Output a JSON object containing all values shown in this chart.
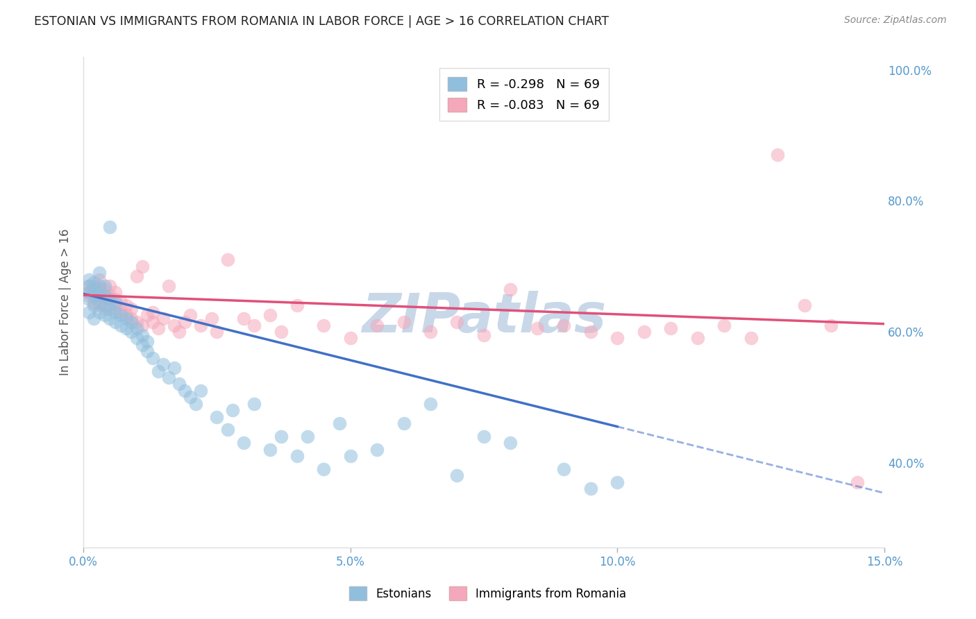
{
  "title": "ESTONIAN VS IMMIGRANTS FROM ROMANIA IN LABOR FORCE | AGE > 16 CORRELATION CHART",
  "source": "Source: ZipAtlas.com",
  "ylabel_label": "In Labor Force | Age > 16",
  "x_min": 0.0,
  "x_max": 0.15,
  "y_min": 0.27,
  "y_max": 1.02,
  "x_ticks": [
    0.0,
    0.05,
    0.1,
    0.15
  ],
  "x_tick_labels": [
    "0.0%",
    "5.0%",
    "10.0%",
    "15.0%"
  ],
  "y_ticks": [
    0.4,
    0.6,
    0.8,
    1.0
  ],
  "y_tick_labels": [
    "40.0%",
    "60.0%",
    "80.0%",
    "100.0%"
  ],
  "blue_R": -0.298,
  "blue_N": 69,
  "pink_R": -0.083,
  "pink_N": 69,
  "blue_color": "#90bedd",
  "pink_color": "#f5a8bb",
  "blue_line_color": "#4070c8",
  "pink_line_color": "#e0507a",
  "grid_color": "#cccccc",
  "background_color": "#ffffff",
  "title_color": "#222222",
  "axis_label_color": "#555555",
  "tick_color": "#5599cc",
  "watermark_text": "ZIPatlas",
  "watermark_color": "#c8d8e8",
  "legend_label_blue": "Estonians",
  "legend_label_pink": "Immigrants from Romania",
  "blue_scatter_x": [
    0.001,
    0.001,
    0.001,
    0.001,
    0.001,
    0.002,
    0.002,
    0.002,
    0.002,
    0.002,
    0.003,
    0.003,
    0.003,
    0.003,
    0.003,
    0.004,
    0.004,
    0.004,
    0.004,
    0.005,
    0.005,
    0.005,
    0.005,
    0.006,
    0.006,
    0.006,
    0.007,
    0.007,
    0.008,
    0.008,
    0.009,
    0.009,
    0.01,
    0.01,
    0.011,
    0.011,
    0.012,
    0.012,
    0.013,
    0.014,
    0.015,
    0.016,
    0.017,
    0.018,
    0.019,
    0.02,
    0.021,
    0.022,
    0.025,
    0.027,
    0.028,
    0.03,
    0.032,
    0.035,
    0.037,
    0.04,
    0.042,
    0.045,
    0.048,
    0.05,
    0.055,
    0.06,
    0.065,
    0.07,
    0.075,
    0.08,
    0.09,
    0.095,
    0.1
  ],
  "blue_scatter_y": [
    0.65,
    0.66,
    0.67,
    0.68,
    0.63,
    0.64,
    0.655,
    0.665,
    0.675,
    0.62,
    0.63,
    0.645,
    0.655,
    0.67,
    0.69,
    0.625,
    0.64,
    0.655,
    0.67,
    0.62,
    0.635,
    0.65,
    0.76,
    0.615,
    0.63,
    0.645,
    0.61,
    0.625,
    0.605,
    0.62,
    0.6,
    0.615,
    0.59,
    0.605,
    0.58,
    0.595,
    0.57,
    0.585,
    0.56,
    0.54,
    0.55,
    0.53,
    0.545,
    0.52,
    0.51,
    0.5,
    0.49,
    0.51,
    0.47,
    0.45,
    0.48,
    0.43,
    0.49,
    0.42,
    0.44,
    0.41,
    0.44,
    0.39,
    0.46,
    0.41,
    0.42,
    0.46,
    0.49,
    0.38,
    0.44,
    0.43,
    0.39,
    0.36,
    0.37
  ],
  "pink_scatter_x": [
    0.001,
    0.001,
    0.001,
    0.002,
    0.002,
    0.002,
    0.003,
    0.003,
    0.003,
    0.003,
    0.004,
    0.004,
    0.004,
    0.005,
    0.005,
    0.005,
    0.006,
    0.006,
    0.006,
    0.007,
    0.007,
    0.008,
    0.008,
    0.009,
    0.009,
    0.01,
    0.01,
    0.011,
    0.011,
    0.012,
    0.013,
    0.013,
    0.014,
    0.015,
    0.016,
    0.017,
    0.018,
    0.019,
    0.02,
    0.022,
    0.024,
    0.025,
    0.027,
    0.03,
    0.032,
    0.035,
    0.037,
    0.04,
    0.045,
    0.05,
    0.055,
    0.06,
    0.065,
    0.07,
    0.075,
    0.08,
    0.085,
    0.09,
    0.095,
    0.1,
    0.105,
    0.11,
    0.115,
    0.12,
    0.125,
    0.13,
    0.135,
    0.14,
    0.145
  ],
  "pink_scatter_y": [
    0.655,
    0.67,
    0.66,
    0.645,
    0.66,
    0.67,
    0.64,
    0.655,
    0.665,
    0.68,
    0.635,
    0.65,
    0.665,
    0.64,
    0.655,
    0.67,
    0.635,
    0.65,
    0.66,
    0.63,
    0.645,
    0.625,
    0.64,
    0.62,
    0.635,
    0.615,
    0.685,
    0.7,
    0.61,
    0.625,
    0.615,
    0.63,
    0.605,
    0.62,
    0.67,
    0.61,
    0.6,
    0.615,
    0.625,
    0.61,
    0.62,
    0.6,
    0.71,
    0.62,
    0.61,
    0.625,
    0.6,
    0.64,
    0.61,
    0.59,
    0.61,
    0.615,
    0.6,
    0.615,
    0.595,
    0.665,
    0.605,
    0.61,
    0.6,
    0.59,
    0.6,
    0.605,
    0.59,
    0.61,
    0.59,
    0.87,
    0.64,
    0.61,
    0.37
  ]
}
